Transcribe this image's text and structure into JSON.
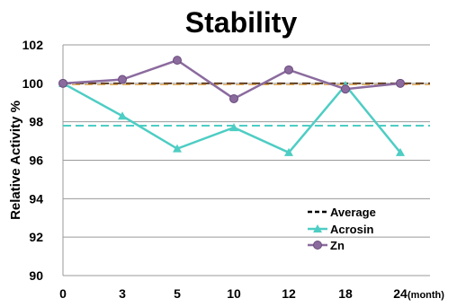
{
  "chart_data": {
    "type": "line",
    "title": "Stability",
    "xlabel": "",
    "x_unit": "(month)",
    "ylabel": "Relative Activity %",
    "categories": [
      "0",
      "3",
      "5",
      "10",
      "12",
      "18",
      "24"
    ],
    "ylim": [
      90,
      102
    ],
    "yticks": [
      "90",
      "92",
      "94",
      "96",
      "98",
      "100",
      "102"
    ],
    "grid": true,
    "legend_position": "bottom-right",
    "series": [
      {
        "name": "Acrosin",
        "values": [
          100.0,
          98.3,
          96.6,
          97.7,
          96.4,
          99.9,
          96.4
        ],
        "color": "#4ecdc4",
        "average": 97.8,
        "marker": "triangle"
      },
      {
        "name": "Zn",
        "values": [
          100.0,
          100.2,
          101.2,
          99.2,
          100.7,
          99.7,
          100.0
        ],
        "color": "#8b6b9e",
        "average": 100.0,
        "marker": "circle"
      }
    ],
    "average_label": "Average",
    "average_line_color": "#5c3a1e"
  }
}
